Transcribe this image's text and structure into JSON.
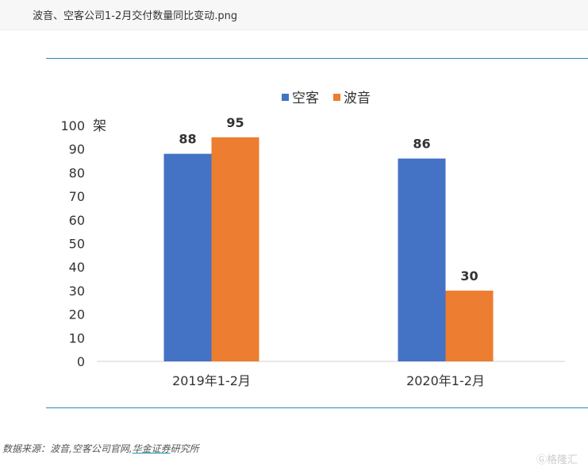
{
  "header": {
    "title": "波音、空客公司1-2月交付数量同比变动.png"
  },
  "chart_data": {
    "type": "bar",
    "categories": [
      "2019年1-2月",
      "2020年1-2月"
    ],
    "series": [
      {
        "name": "空客",
        "color": "#4472c4",
        "values": [
          88,
          86
        ]
      },
      {
        "name": "波音",
        "color": "#ed7d31",
        "values": [
          95,
          30
        ]
      }
    ],
    "ylabel": "架",
    "ylim": [
      0,
      100
    ],
    "yticks": [
      0,
      10,
      20,
      30,
      40,
      50,
      60,
      70,
      80,
      90,
      100
    ],
    "grid": false,
    "legend": "top"
  },
  "source": {
    "prefix": "数据来源：波音,空客公司官网,",
    "link": "华金证券",
    "suffix": "研究所"
  },
  "watermark": "格隆汇"
}
